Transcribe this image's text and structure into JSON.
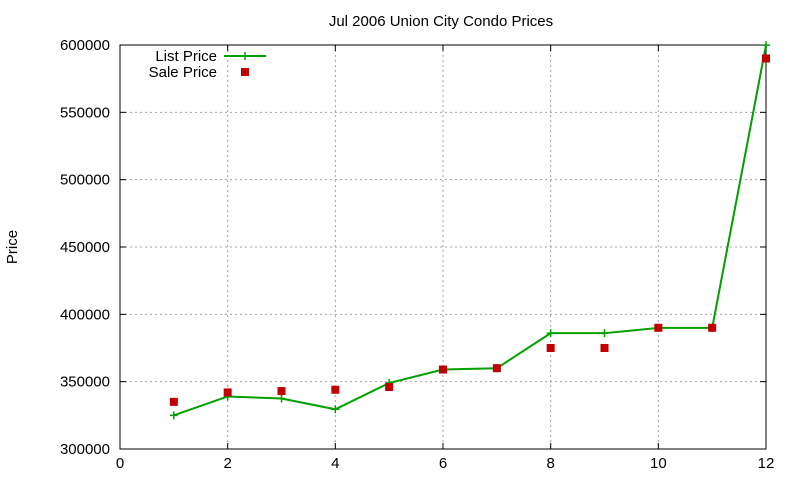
{
  "chart_data": {
    "type": "line",
    "title": "Jul 2006 Union City Condo Prices",
    "xlabel": "",
    "ylabel": "Price",
    "xlim": [
      0,
      12
    ],
    "ylim": [
      300000,
      600000
    ],
    "xticks": [
      0,
      2,
      4,
      6,
      8,
      10,
      12
    ],
    "yticks": [
      300000,
      350000,
      400000,
      450000,
      500000,
      550000,
      600000
    ],
    "grid": true,
    "legend_position": "top-left",
    "series": [
      {
        "name": "List Price",
        "style": "line+cross",
        "color": "#00a000",
        "points": [
          [
            1,
            325000
          ],
          [
            2,
            339000
          ],
          [
            3,
            337500
          ],
          [
            4,
            329500
          ],
          [
            5,
            349000
          ],
          [
            6,
            359000
          ],
          [
            7,
            360000
          ],
          [
            8,
            386000
          ],
          [
            9,
            386000
          ],
          [
            10,
            389900
          ],
          [
            11,
            389900
          ],
          [
            12,
            599900
          ]
        ]
      },
      {
        "name": "Sale Price",
        "style": "square",
        "color": "#c00000",
        "points": [
          [
            1,
            335000
          ],
          [
            2,
            342000
          ],
          [
            3,
            343000
          ],
          [
            4,
            344000
          ],
          [
            5,
            346000
          ],
          [
            6,
            359000
          ],
          [
            7,
            360000
          ],
          [
            8,
            375000
          ],
          [
            9,
            375000
          ],
          [
            10,
            390000
          ],
          [
            11,
            390000
          ],
          [
            12,
            590000
          ]
        ]
      }
    ]
  }
}
